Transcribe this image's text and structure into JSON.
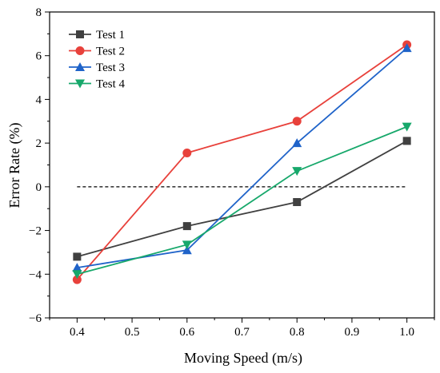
{
  "chart_data": {
    "type": "line",
    "xlabel": "Moving Speed (m/s)",
    "ylabel": "Error Rate (%)",
    "xlim": [
      0.35,
      1.05
    ],
    "ylim": [
      -6,
      8
    ],
    "xticks": [
      0.4,
      0.5,
      0.6,
      0.7,
      0.8,
      0.9,
      1.0
    ],
    "xtick_labels": [
      "0.4",
      "0.5",
      "0.6",
      "0.7",
      "0.8",
      "0.9",
      "1.0"
    ],
    "yticks": [
      -6,
      -4,
      -2,
      0,
      2,
      4,
      6,
      8
    ],
    "ytick_labels": [
      "−6",
      "−4",
      "−2",
      "0",
      "2",
      "4",
      "6",
      "8"
    ],
    "x": [
      0.4,
      0.6,
      0.8,
      1.0
    ],
    "reference_line": {
      "y": 0,
      "style": "dashed",
      "color": "#000000"
    },
    "legend_position": "top-left",
    "grid": false,
    "series": [
      {
        "name": "Test 1",
        "values": [
          -3.2,
          -1.8,
          -0.7,
          2.1
        ],
        "color": "#404040",
        "marker": "square"
      },
      {
        "name": "Test 2",
        "values": [
          -4.25,
          1.55,
          3.0,
          6.5
        ],
        "color": "#e8413b",
        "marker": "circle"
      },
      {
        "name": "Test 3",
        "values": [
          -3.7,
          -2.9,
          2.0,
          6.35
        ],
        "color": "#1f63c9",
        "marker": "triangle-up"
      },
      {
        "name": "Test 4",
        "values": [
          -4.0,
          -2.65,
          0.72,
          2.75
        ],
        "color": "#17a86b",
        "marker": "triangle-down"
      }
    ]
  }
}
